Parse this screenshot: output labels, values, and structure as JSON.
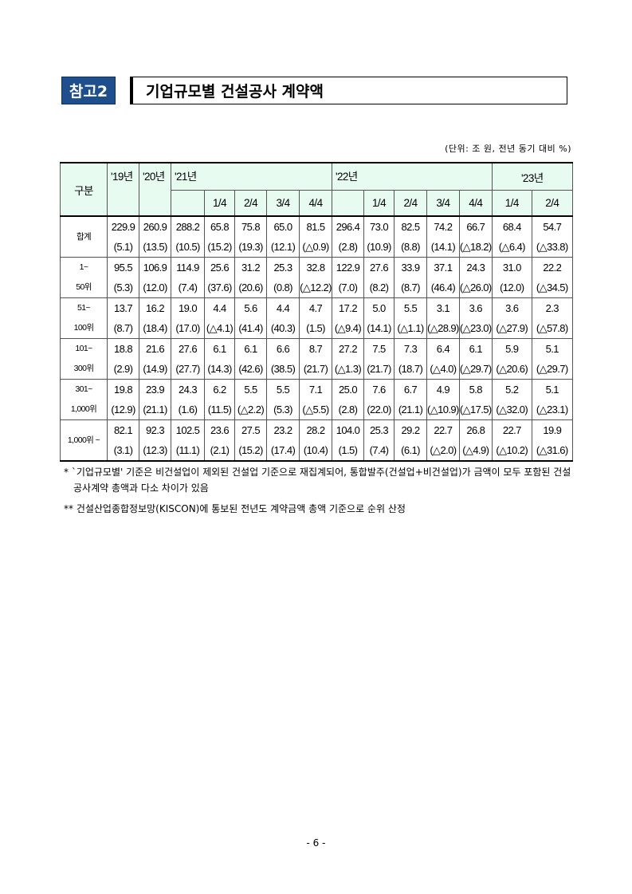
{
  "header": {
    "badge": "참고2",
    "title": "기업규모별 건설공사 계약액",
    "unit": "(단위: 조 원, 전년 동기 대비 %)"
  },
  "table": {
    "corner": "구분",
    "years": [
      "'19년",
      "'20년",
      "'21년",
      "'22년",
      "'23년"
    ],
    "quarters21": [
      "1/4",
      "2/4",
      "3/4",
      "4/4"
    ],
    "quarters22": [
      "1/4",
      "2/4",
      "3/4",
      "4/4"
    ],
    "quarters23": [
      "1/4",
      "2/4"
    ],
    "rows": [
      {
        "label": [
          "합계",
          ""
        ],
        "values": [
          "229.9",
          "260.9",
          "288.2",
          "65.8",
          "75.8",
          "65.0",
          "81.5",
          "296.4",
          "73.0",
          "82.5",
          "74.2",
          "66.7",
          "68.4",
          "54.7"
        ],
        "changes": [
          "(5.1)",
          "(13.5)",
          "(10.5)",
          "(15.2)",
          "(19.3)",
          "(12.1)",
          "(△0.9)",
          "(2.8)",
          "(10.9)",
          "(8.8)",
          "(14.1)",
          "(△18.2)",
          "(△6.4)",
          "(△33.8)"
        ]
      },
      {
        "label": [
          "1~",
          "50위"
        ],
        "values": [
          "95.5",
          "106.9",
          "114.9",
          "25.6",
          "31.2",
          "25.3",
          "32.8",
          "122.9",
          "27.6",
          "33.9",
          "37.1",
          "24.3",
          "31.0",
          "22.2"
        ],
        "changes": [
          "(5.3)",
          "(12.0)",
          "(7.4)",
          "(37.6)",
          "(20.6)",
          "(0.8)",
          "(△12.2)",
          "(7.0)",
          "(8.2)",
          "(8.7)",
          "(46.4)",
          "(△26.0)",
          "(12.0)",
          "(△34.5)"
        ]
      },
      {
        "label": [
          "51~",
          "100위"
        ],
        "values": [
          "13.7",
          "16.2",
          "19.0",
          "4.4",
          "5.6",
          "4.4",
          "4.7",
          "17.2",
          "5.0",
          "5.5",
          "3.1",
          "3.6",
          "3.6",
          "2.3"
        ],
        "changes": [
          "(8.7)",
          "(18.4)",
          "(17.0)",
          "(△4.1)",
          "(41.4)",
          "(40.3)",
          "(1.5)",
          "(△9.4)",
          "(14.1)",
          "(△1.1)",
          "(△28.9)",
          "(△23.0)",
          "(△27.9)",
          "(△57.8)"
        ]
      },
      {
        "label": [
          "101~",
          "300위"
        ],
        "values": [
          "18.8",
          "21.6",
          "27.6",
          "6.1",
          "6.1",
          "6.6",
          "8.7",
          "27.2",
          "7.5",
          "7.3",
          "6.4",
          "6.1",
          "5.9",
          "5.1"
        ],
        "changes": [
          "(2.9)",
          "(14.9)",
          "(27.7)",
          "(14.3)",
          "(42.6)",
          "(38.5)",
          "(21.7)",
          "(△1.3)",
          "(21.7)",
          "(18.7)",
          "(△4.0)",
          "(△29.7)",
          "(△20.6)",
          "(△29.7)"
        ]
      },
      {
        "label": [
          "301~",
          "1,000위"
        ],
        "values": [
          "19.8",
          "23.9",
          "24.3",
          "6.2",
          "5.5",
          "5.5",
          "7.1",
          "25.0",
          "7.6",
          "6.7",
          "4.9",
          "5.8",
          "5.2",
          "5.1"
        ],
        "changes": [
          "(12.9)",
          "(21.1)",
          "(1.6)",
          "(11.5)",
          "(△2.2)",
          "(5.3)",
          "(△5.5)",
          "(2.8)",
          "(22.0)",
          "(21.1)",
          "(△10.9)",
          "(△17.5)",
          "(△32.0)",
          "(△23.1)"
        ]
      },
      {
        "label": [
          "1,000위 ~",
          ""
        ],
        "values": [
          "82.1",
          "92.3",
          "102.5",
          "23.6",
          "27.5",
          "23.2",
          "28.2",
          "104.0",
          "25.3",
          "29.2",
          "22.7",
          "26.8",
          "22.7",
          "19.9"
        ],
        "changes": [
          "(3.1)",
          "(12.3)",
          "(11.1)",
          "(2.1)",
          "(15.2)",
          "(17.4)",
          "(10.4)",
          "(1.5)",
          "(7.4)",
          "(6.1)",
          "(△2.0)",
          "(△4.9)",
          "(△10.2)",
          "(△31.6)"
        ]
      }
    ]
  },
  "notes": [
    "* `기업규모별' 기준은 비건설업이 제외된 건설업 기준으로 재집계되어, 통합발주(건설업+비건설업)가 금액이 모두 포함된 건설공사계약 총액과 다소 차이가 있음",
    "** 건설산업종합정보망(KISCON)에 통보된 전년도 계약금액 총액 기준으로 순위 산정"
  ],
  "page": "- 6 -"
}
